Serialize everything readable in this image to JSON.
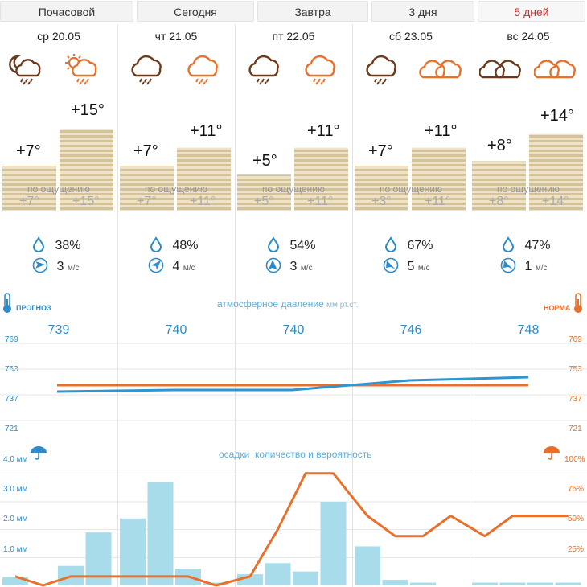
{
  "tabs": [
    {
      "label": "Почасовой",
      "active": false
    },
    {
      "label": "Сегодня",
      "active": false
    },
    {
      "label": "Завтра",
      "active": false
    },
    {
      "label": "3 дня",
      "active": false
    },
    {
      "label": "5 дней",
      "active": true
    }
  ],
  "days": [
    {
      "date": "ср 20.05",
      "icons": [
        "night-cloud-rain-icon",
        "sun-cloud-rain-icon"
      ],
      "t_night": "+7°",
      "t_day": "+15°",
      "t_night_value": 7,
      "t_day_value": 15,
      "feels_label": "по ощущению",
      "feels_night": "+7°",
      "feels_day": "+15°",
      "humidity": "38%",
      "wind": "3",
      "wind_unit": "м/с",
      "pressure": "739",
      "pressure_value": 739
    },
    {
      "date": "чт 21.05",
      "icons": [
        "cloud-rain-icon",
        "cloud-rain-icon"
      ],
      "t_night": "+7°",
      "t_day": "+11°",
      "t_night_value": 7,
      "t_day_value": 11,
      "feels_label": "по ощущению",
      "feels_night": "+7°",
      "feels_day": "+11°",
      "humidity": "48%",
      "wind": "4",
      "wind_unit": "м/с",
      "pressure": "740",
      "pressure_value": 740
    },
    {
      "date": "пт 22.05",
      "icons": [
        "cloud-rain-icon",
        "cloud-rain-icon"
      ],
      "t_night": "+5°",
      "t_day": "+11°",
      "t_night_value": 5,
      "t_day_value": 11,
      "feels_label": "по ощущению",
      "feels_night": "+5°",
      "feels_day": "+11°",
      "humidity": "54%",
      "wind": "3",
      "wind_unit": "м/с",
      "pressure": "740",
      "pressure_value": 740
    },
    {
      "date": "сб 23.05",
      "icons": [
        "cloud-rain-icon",
        "clouds-icon"
      ],
      "t_night": "+7°",
      "t_day": "+11°",
      "t_night_value": 7,
      "t_day_value": 11,
      "feels_label": "по ощущению",
      "feels_night": "+3°",
      "feels_day": "+11°",
      "humidity": "67%",
      "wind": "5",
      "wind_unit": "м/с",
      "pressure": "746",
      "pressure_value": 746
    },
    {
      "date": "вс 24.05",
      "icons": [
        "clouds-icon",
        "clouds-icon"
      ],
      "t_night": "+8°",
      "t_day": "+14°",
      "t_night_value": 8,
      "t_day_value": 14,
      "feels_label": "по ощущению",
      "feels_night": "+8°",
      "feels_day": "+14°",
      "humidity": "47%",
      "wind": "1",
      "wind_unit": "м/с",
      "pressure": "748",
      "pressure_value": 748
    }
  ],
  "pressure_section": {
    "title": "атмосферное давление",
    "unit": "мм рт.ст.",
    "left_label": "ПРОГНОЗ",
    "right_label": "НОРМА",
    "ticks": [
      "769",
      "753",
      "737",
      "721"
    ],
    "tick_values": [
      769,
      753,
      737,
      721
    ],
    "norm_value": 743
  },
  "precip_section": {
    "title": "осадки",
    "subtitle": "количество и вероятность",
    "left_ticks": [
      "4.0 мм",
      "3.0 мм",
      "2.0 мм",
      "1.0 мм"
    ],
    "left_tick_values": [
      4,
      3,
      2,
      1
    ],
    "right_ticks": [
      "100%",
      "75%",
      "50%",
      "25%"
    ],
    "right_tick_values": [
      100,
      75,
      50,
      25
    ]
  },
  "chart_data": [
    {
      "type": "line",
      "title": "атмосферное давление",
      "ylabel": "мм рт.ст.",
      "categories": [
        "ср 20.05",
        "чт 21.05",
        "пт 22.05",
        "сб 23.05",
        "вс 24.05"
      ],
      "series": [
        {
          "name": "ПРОГНОЗ",
          "values": [
            739,
            740,
            740,
            746,
            748
          ],
          "color": "#2e95d3"
        },
        {
          "name": "НОРМА",
          "values": [
            743,
            743,
            743,
            743,
            743
          ],
          "color": "#e8702a"
        }
      ],
      "ylim": [
        705,
        785
      ]
    },
    {
      "type": "bar",
      "title": "осадки",
      "subtitle": "количество и вероятность",
      "ylabel": "мм",
      "ylim": [
        0,
        4.5
      ],
      "y2lim": [
        0,
        112
      ],
      "x": [
        "ср 20.05 1",
        "ср 20.05 2",
        "ср 20.05 3",
        "ср 20.05 4",
        "чт 21.05 1",
        "чт 21.05 2",
        "чт 21.05 3",
        "чт 21.05 4",
        "пт 22.05 1",
        "пт 22.05 2",
        "пт 22.05 3",
        "пт 22.05 4",
        "сб 23.05 1",
        "сб 23.05 2",
        "сб 23.05 3",
        "сб 23.05 4",
        "вс 24.05 1",
        "вс 24.05 2",
        "вс 24.05 3",
        "вс 24.05 4"
      ],
      "series": [
        {
          "name": "количество",
          "values": [
            0.3,
            0.0,
            0.7,
            1.9,
            2.4,
            3.7,
            0.6,
            0.1,
            0.4,
            0.8,
            0.5,
            3.0,
            1.4,
            0.2,
            0.1,
            0.0,
            0.1,
            0.1,
            0.1,
            0.1
          ],
          "color": "#a9dcea"
        },
        {
          "name": "вероятность",
          "values": [
            8,
            0,
            8,
            8,
            8,
            8,
            8,
            0,
            8,
            50,
            100,
            100,
            62,
            44,
            44,
            62,
            44,
            62,
            62,
            62
          ],
          "color": "#e8702a"
        }
      ]
    }
  ],
  "colors": {
    "rain_icon": "#6b3a1a",
    "rain_icon_alt": "#e8702a",
    "pressure_line": "#2e95d3",
    "norm_line": "#e8702a",
    "humidity_icon": "#2e8bc8",
    "tan_bar": "#d9c7a3",
    "active_tab": "#d22b2b"
  }
}
